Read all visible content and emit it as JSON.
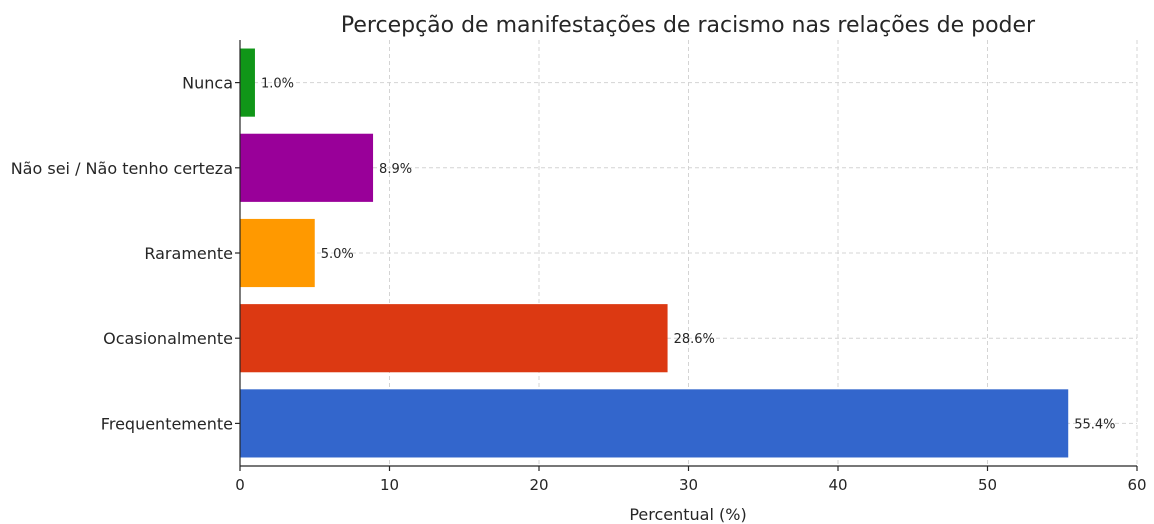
{
  "chart_data": {
    "type": "bar",
    "orientation": "horizontal",
    "title": "Percepção de manifestações de racismo nas relações de poder",
    "xlabel": "Percentual (%)",
    "ylabel": "",
    "xlim": [
      0,
      60
    ],
    "xticks": [
      "0",
      "10",
      "20",
      "30",
      "40",
      "50",
      "60"
    ],
    "grid": true,
    "categories": [
      "Frequentemente",
      "Ocasionalmente",
      "Raramente",
      "Não sei / Não tenho certeza",
      "Nunca"
    ],
    "values": [
      55.4,
      28.6,
      5.0,
      8.9,
      1.0
    ],
    "value_labels": [
      "55.4%",
      "28.6%",
      "5.0%",
      "8.9%",
      "1.0%"
    ],
    "colors": [
      "#3366cc",
      "#dc3912",
      "#ff9900",
      "#990099",
      "#109618"
    ]
  }
}
